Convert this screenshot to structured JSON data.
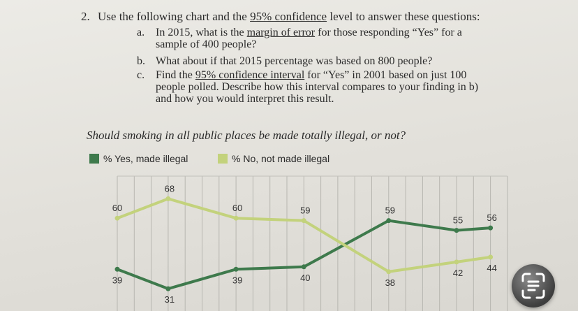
{
  "question": {
    "number": "2.",
    "pre": "Use the following chart and the ",
    "link": "95% confidence",
    "post": " level to answer these questions:"
  },
  "sub_questions": [
    {
      "letter": "a.",
      "lines": [
        [
          {
            "t": "In 2015, what is the "
          },
          {
            "t": "margin of error",
            "u": true
          },
          {
            "t": " for those responding “Yes” for a"
          }
        ],
        [
          {
            "t": "sample of 400 people?"
          }
        ]
      ]
    },
    {
      "letter": "b.",
      "lines": [
        [
          {
            "t": "What about if that 2015 percentage was based on 800 people?"
          }
        ]
      ]
    },
    {
      "letter": "c.",
      "lines": [
        [
          {
            "t": "Find the "
          },
          {
            "t": "95% confidence interval",
            "u": true
          },
          {
            "t": " for “Yes” in 2001 based on just 100"
          }
        ],
        [
          {
            "t": "people polled. Describe how this interval compares to your finding in b)"
          }
        ],
        [
          {
            "t": "and how you would interpret this result."
          }
        ]
      ]
    }
  ],
  "chart_data": {
    "type": "line",
    "title": "Should smoking in all public places be made totally illegal, or not?",
    "series": [
      {
        "name": "% Yes, made illegal",
        "color": "#3e7a4c",
        "values": [
          39,
          31,
          39,
          40,
          59,
          55,
          56
        ]
      },
      {
        "name": "% No, not made illegal",
        "color": "#c3d27c",
        "values": [
          60,
          68,
          60,
          59,
          38,
          42,
          44
        ]
      }
    ],
    "x_index": [
      0,
      3,
      7,
      11,
      16,
      20,
      22
    ],
    "ylim": [
      25,
      75
    ],
    "grid": true
  },
  "overlay": {
    "icon": "text-scan-icon"
  }
}
